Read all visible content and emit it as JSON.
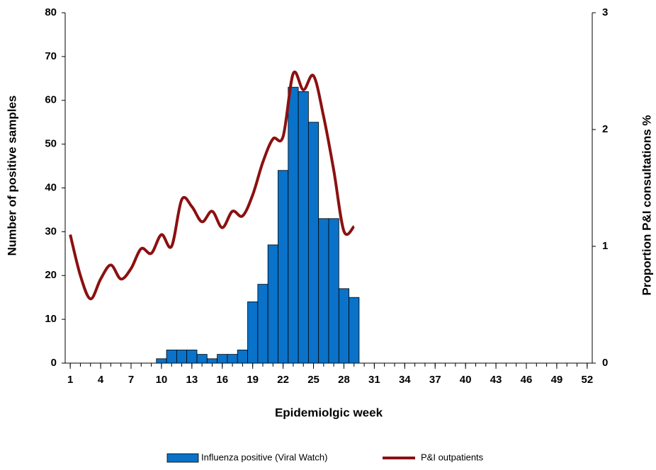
{
  "chart_data": {
    "type": "bar",
    "x_label": "Epidemiolgic week",
    "y_label": "Number of positive samples",
    "y2_label": "Proportion P&I consultations %",
    "xlim": [
      0.5,
      52.5
    ],
    "xticks": [
      1,
      4,
      7,
      10,
      13,
      16,
      19,
      22,
      25,
      28,
      31,
      34,
      37,
      40,
      43,
      46,
      49,
      52
    ],
    "ylim": [
      0,
      80
    ],
    "yticks": [
      0,
      10,
      20,
      30,
      40,
      50,
      60,
      70,
      80
    ],
    "y2lim": [
      0,
      3
    ],
    "y2ticks": [
      0,
      1,
      2,
      3
    ],
    "series": [
      {
        "name": "Influenza positive (Viral Watch)",
        "type": "bar",
        "color": "#0a72c8",
        "x": [
          10,
          11,
          12,
          13,
          14,
          15,
          16,
          17,
          18,
          19,
          20,
          21,
          22,
          23,
          24,
          25,
          26,
          27,
          28,
          29
        ],
        "values": [
          1,
          3,
          3,
          3,
          2,
          1,
          2,
          2,
          3,
          14,
          18,
          27,
          44,
          63,
          62,
          55,
          33,
          33,
          17,
          15
        ]
      },
      {
        "name": "P&I outpatients",
        "type": "line",
        "axis": "y2",
        "color": "#8b1010",
        "x": [
          1,
          2,
          3,
          4,
          5,
          6,
          7,
          8,
          9,
          10,
          11,
          12,
          13,
          14,
          15,
          16,
          17,
          18,
          19,
          20,
          21,
          22,
          23,
          24,
          25,
          26,
          27,
          28,
          29
        ],
        "values": [
          1.1,
          0.75,
          0.55,
          0.72,
          0.84,
          0.72,
          0.81,
          0.98,
          0.94,
          1.1,
          1.0,
          1.4,
          1.34,
          1.21,
          1.3,
          1.16,
          1.3,
          1.26,
          1.44,
          1.72,
          1.92,
          1.94,
          2.48,
          2.34,
          2.46,
          2.11,
          1.65,
          1.13,
          1.17
        ]
      }
    ]
  }
}
